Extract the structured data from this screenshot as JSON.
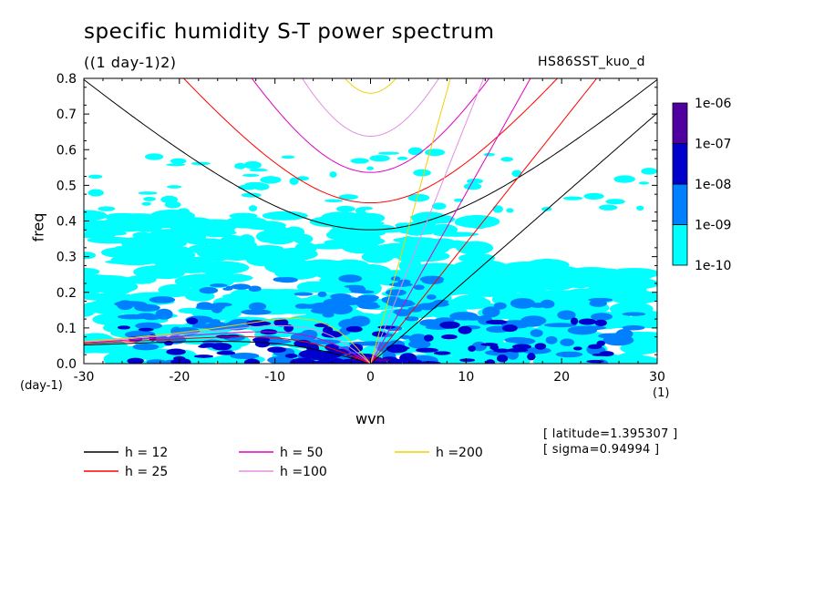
{
  "chart_data": {
    "type": "heatmap",
    "title": "specific humidity S-T power spectrum",
    "subtitle": "((1 day-1)2)",
    "run_name": "HS86SST_kuo_d",
    "xlabel": "wvn",
    "ylabel": "freq",
    "x_unit": "(1)",
    "y_unit": "(day-1)",
    "xlim": [
      -30,
      30
    ],
    "ylim": [
      0,
      0.8
    ],
    "x_ticks": [
      -30,
      -20,
      -10,
      0,
      10,
      20,
      30
    ],
    "x_tick_labels": [
      "-30",
      "-20",
      "-10",
      "0",
      "10",
      "20",
      "30"
    ],
    "y_ticks": [
      0,
      0.1,
      0.2,
      0.3,
      0.4,
      0.5,
      0.6,
      0.7,
      0.8
    ],
    "y_tick_labels": [
      "0.0",
      "0.1",
      "0.2",
      "0.3",
      "0.4",
      "0.5",
      "0.6",
      "0.7",
      "0.8"
    ],
    "colorbar": {
      "levels": [
        "1e-10",
        "1e-09",
        "1e-08",
        "1e-07",
        "1e-06"
      ],
      "colors": [
        "#00ffff",
        "#0080ff",
        "#0000cd",
        "#5000a0"
      ]
    },
    "dispersion_curves": [
      {
        "name": "h = 12",
        "h": 12,
        "color": "#000000"
      },
      {
        "name": "h = 25",
        "h": 25,
        "color": "#ff0000"
      },
      {
        "name": "h = 50",
        "h": 50,
        "color": "#e000c0"
      },
      {
        "name": "h =100",
        "h": 100,
        "color": "#e090e0"
      },
      {
        "name": "h =200",
        "h": 200,
        "color": "#f0d000"
      }
    ],
    "shading_regions": [
      {
        "level": "1e-10 to 1e-09",
        "description": "cyan fill covering most of freq 0 to ~0.45, patchy above"
      },
      {
        "level": "1e-09 to 1e-08",
        "description": "blue patches mostly below freq 0.2, concentrated near wvn -15 to 10"
      },
      {
        "level": "1e-08 to 1e-07",
        "description": "dark blue near freq 0, wvn -10 to 5"
      }
    ]
  },
  "annotations": {
    "latitude": "[ latitude=1.395307 ]",
    "sigma": "[ sigma=0.94994 ]"
  }
}
